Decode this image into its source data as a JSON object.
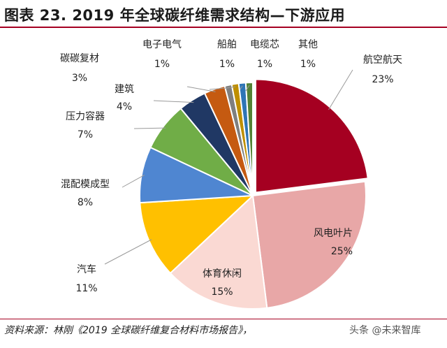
{
  "title": "图表 23. 2019 年全球碳纤维需求结构—下游应用",
  "source": "资料来源：林刚《2019 全球碳纤维复合材料市场报告》，",
  "watermark": "头条 @未来智库",
  "chart_data": {
    "type": "pie",
    "start": "12 o'clock",
    "direction": "clockwise",
    "legend": "none",
    "slices": [
      {
        "name": "航空航天",
        "pct": "23%",
        "value": 23,
        "color": "#a50021"
      },
      {
        "name": "风电叶片",
        "pct": "25%",
        "value": 25,
        "color": "#e8a7a7"
      },
      {
        "name": "体育休闲",
        "pct": "15%",
        "value": 15,
        "color": "#fad9d3"
      },
      {
        "name": "汽车",
        "pct": "11%",
        "value": 11,
        "color": "#ffc000"
      },
      {
        "name": "混配模成型",
        "pct": "8%",
        "value": 8,
        "color": "#4f86d1"
      },
      {
        "name": "压力容器",
        "pct": "7%",
        "value": 7,
        "color": "#70ad47"
      },
      {
        "name": "建筑",
        "pct": "4%",
        "value": 4,
        "color": "#203864"
      },
      {
        "name": "碳碳复材",
        "pct": "3%",
        "value": 3,
        "color": "#c55a11"
      },
      {
        "name": "电子电气",
        "pct": "1%",
        "value": 1,
        "color": "#7f7f7f"
      },
      {
        "name": "船舶",
        "pct": "1%",
        "value": 1,
        "color": "#bf8f00"
      },
      {
        "name": "电缆芯",
        "pct": "1%",
        "value": 1,
        "color": "#2e75b6"
      },
      {
        "name": "其他",
        "pct": "1%",
        "value": 1,
        "color": "#548235"
      }
    ]
  }
}
